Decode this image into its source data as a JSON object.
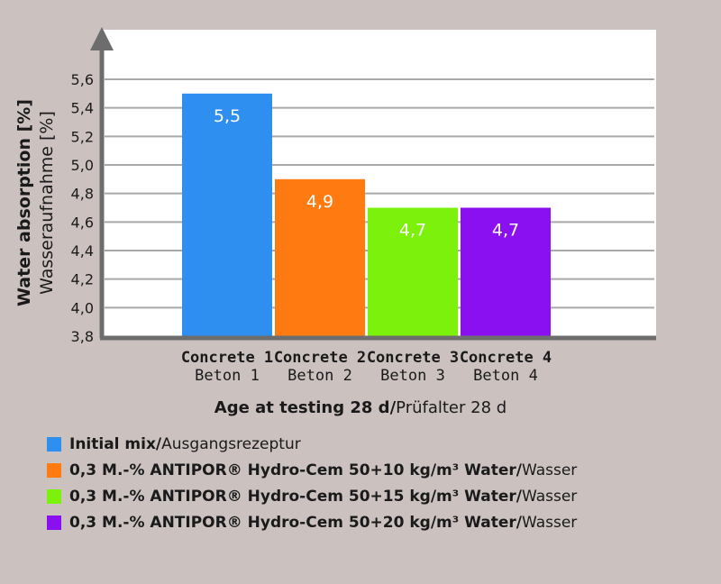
{
  "chart_data": {
    "type": "bar",
    "categories": [
      {
        "line1": "Concrete 1",
        "line2": "Beton 1"
      },
      {
        "line1": "Concrete 2",
        "line2": "Beton 2"
      },
      {
        "line1": "Concrete 3",
        "line2": "Beton 3"
      },
      {
        "line1": "Concrete 4",
        "line2": "Beton 4"
      }
    ],
    "values": [
      5.5,
      4.9,
      4.7,
      4.7
    ],
    "value_labels": [
      "5,5",
      "4,9",
      "4,7",
      "4,7"
    ],
    "colors": [
      "#2f8ff0",
      "#ff7a10",
      "#7cf10c",
      "#8a10f2"
    ],
    "ylim": [
      3.8,
      5.6
    ],
    "yticks": [
      3.8,
      4.0,
      4.2,
      4.4,
      4.6,
      4.8,
      5.0,
      5.2,
      5.4,
      5.6
    ],
    "ytick_labels": [
      "3,8",
      "4,0",
      "4,2",
      "4,4",
      "4,6",
      "4,8",
      "5,0",
      "5,2",
      "5,4",
      "5,6"
    ],
    "ylabel_en": "Water absorption [%]",
    "ylabel_de": "Wasseraufnahme [%]",
    "xlabel_bold": "Age at testing 28 d/",
    "xlabel_regular": "Prüfalter 28 d",
    "grid": true,
    "legend": [
      {
        "bold": "Initial mix/",
        "regular": "Ausgangsrezeptur",
        "color": "#2f8ff0"
      },
      {
        "bold": "0,3 M.-% ANTIPOR®  Hydro-Cem 50+10 kg/m³ Water/",
        "regular": "Wasser",
        "color": "#ff7a10"
      },
      {
        "bold": "0,3 M.-% ANTIPOR®  Hydro-Cem 50+15 kg/m³ Water/",
        "regular": "Wasser",
        "color": "#7cf10c"
      },
      {
        "bold": "0,3 M.-% ANTIPOR®  Hydro-Cem 50+20 kg/m³ Water/",
        "regular": "Wasser",
        "color": "#8a10f2"
      }
    ],
    "legend_placement": "bottom-left"
  }
}
